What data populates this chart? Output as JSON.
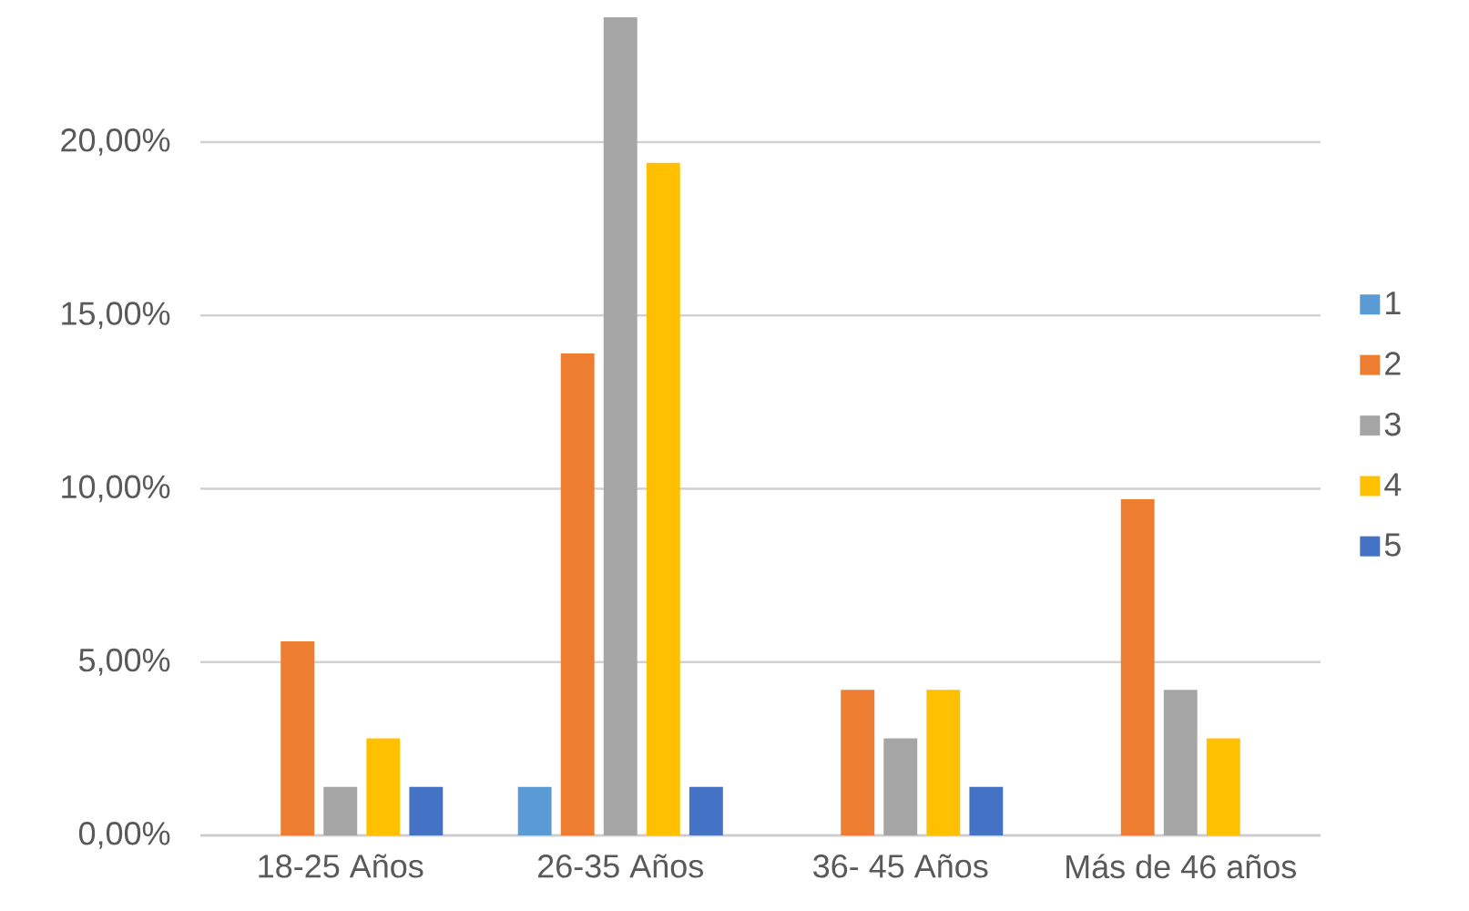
{
  "chart_data": {
    "type": "bar",
    "categories": [
      "18-25 Años",
      "26-35 Años",
      "36- 45 Años",
      "Más de 46 años"
    ],
    "series": [
      {
        "name": "1",
        "color": "#5b9bd5",
        "values": [
          null,
          1.4,
          null,
          null
        ]
      },
      {
        "name": "2",
        "color": "#ed7d31",
        "values": [
          5.6,
          13.9,
          4.2,
          9.7
        ]
      },
      {
        "name": "3",
        "color": "#a5a5a5",
        "values": [
          1.4,
          23.6,
          2.8,
          4.2
        ]
      },
      {
        "name": "4",
        "color": "#ffc000",
        "values": [
          2.8,
          19.4,
          4.2,
          2.8
        ]
      },
      {
        "name": "5",
        "color": "#4472c4",
        "values": [
          1.4,
          1.4,
          1.4,
          null
        ]
      }
    ],
    "ylim": [
      0,
      23.6
    ],
    "yticks": [
      {
        "value": 0,
        "label": "0,00%"
      },
      {
        "value": 5,
        "label": "5,00%"
      },
      {
        "value": 10,
        "label": "10,00%"
      },
      {
        "value": 15,
        "label": "15,00%"
      },
      {
        "value": 20,
        "label": "20,00%"
      }
    ],
    "grid": "y",
    "legend": "right"
  }
}
